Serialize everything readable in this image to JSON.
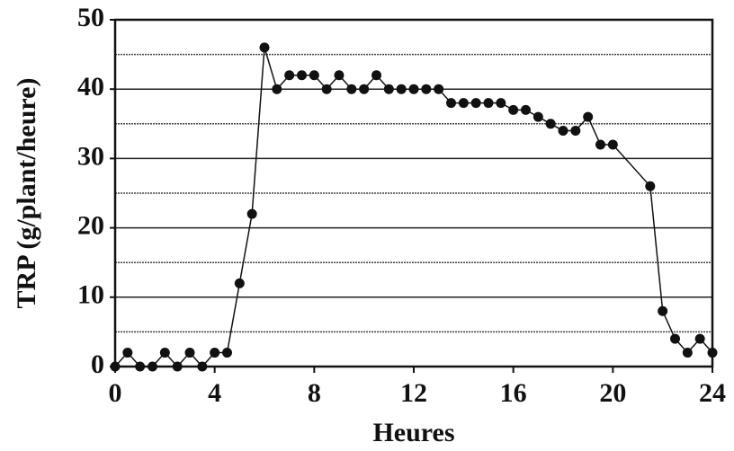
{
  "chart_data": {
    "type": "line",
    "xlabel": "Heures",
    "ylabel": "TRP  (g/plant/heure)",
    "xlim": [
      0,
      24
    ],
    "xticks": [
      0,
      4,
      8,
      12,
      16,
      20,
      24
    ],
    "ylim": [
      0,
      50
    ],
    "yticks": [
      0,
      10,
      20,
      30,
      40,
      50
    ],
    "yminorticks": [
      5,
      15,
      25,
      35,
      45
    ],
    "grid": true,
    "color": "#111111",
    "x": [
      0,
      0.5,
      1,
      1.5,
      2,
      2.5,
      3,
      3.5,
      4,
      4.5,
      5,
      5.5,
      6,
      6.5,
      7,
      7.5,
      8,
      8.5,
      9,
      9.5,
      10,
      10.5,
      11,
      11.5,
      12,
      12.5,
      13,
      13.5,
      14,
      14.5,
      15,
      15.5,
      16,
      16.5,
      17,
      17.5,
      18,
      18.5,
      19,
      19.5,
      20,
      21.5,
      22,
      22.5,
      23,
      23.5,
      24
    ],
    "values": [
      0,
      2,
      0,
      0,
      2,
      0,
      2,
      0,
      2,
      2,
      12,
      22,
      46,
      40,
      42,
      42,
      42,
      40,
      42,
      40,
      40,
      42,
      40,
      40,
      40,
      40,
      40,
      38,
      38,
      38,
      38,
      38,
      37,
      37,
      36,
      35,
      34,
      34,
      36,
      32,
      32,
      26,
      8,
      4,
      2,
      4,
      2
    ]
  }
}
